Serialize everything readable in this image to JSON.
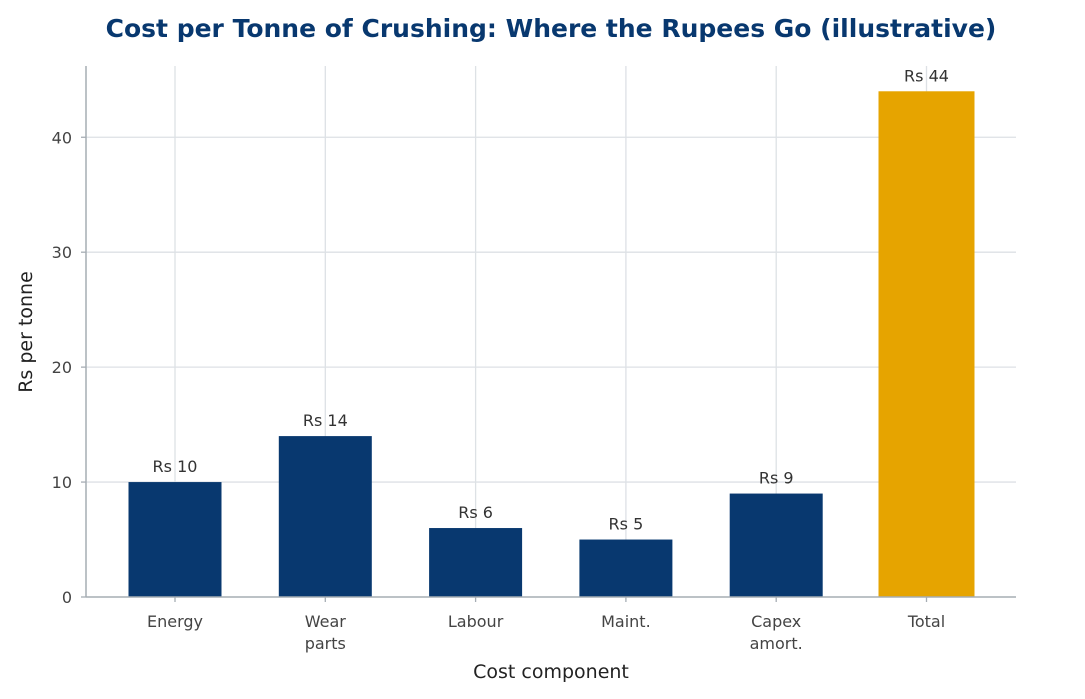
{
  "chart_data": {
    "type": "bar",
    "title": "Cost per Tonne of Crushing: Where the Rupees Go (illustrative)",
    "xlabel": "Cost component",
    "ylabel": "Rs per tonne",
    "categories": [
      [
        "Energy"
      ],
      [
        "Wear",
        "parts"
      ],
      [
        "Labour"
      ],
      [
        "Maint."
      ],
      [
        "Capex",
        "amort."
      ],
      [
        "Total"
      ]
    ],
    "values": [
      10,
      14,
      6,
      5,
      9,
      44
    ],
    "data_labels": [
      "Rs 10",
      "Rs 14",
      "Rs 6",
      "Rs 5",
      "Rs 9",
      "Rs 44"
    ],
    "ylim": [
      0,
      46.2
    ],
    "yticks": [
      0,
      10,
      20,
      30,
      40
    ],
    "grid": true,
    "colors": {
      "component": "#08386f",
      "total": "#e6a400",
      "title": "#08386f",
      "grid": "#dde1e5",
      "axis": "#a6adb4"
    }
  }
}
